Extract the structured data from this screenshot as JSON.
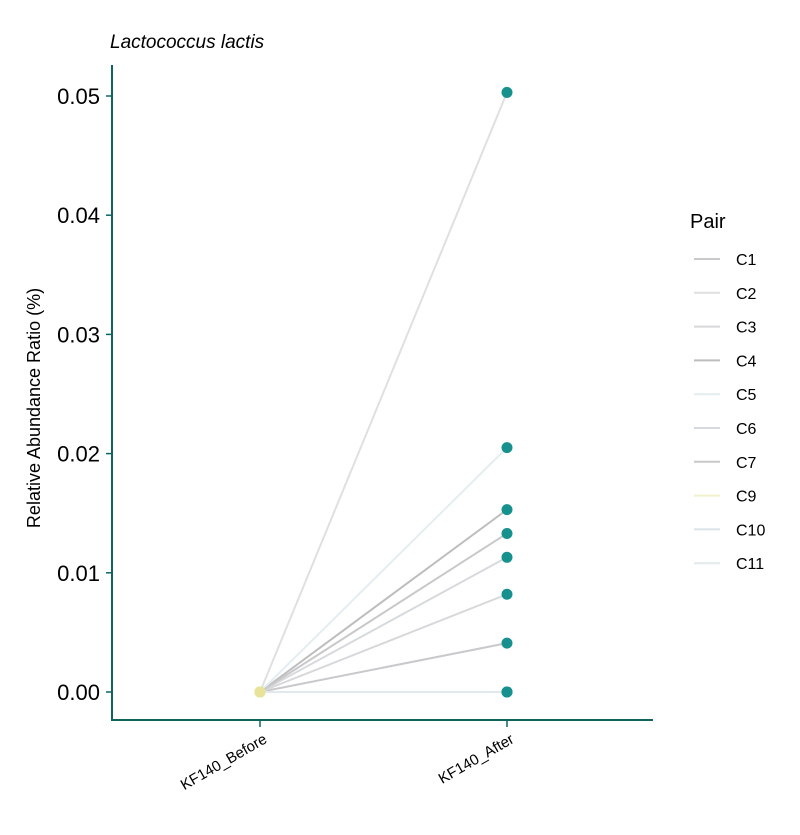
{
  "chart_data": {
    "type": "line",
    "title": "Lactococcus lactis",
    "xlabel": "",
    "ylabel": "Relative Abundance Ratio (%)",
    "categories": [
      "KF140_Before",
      "KF140_After"
    ],
    "ylim": [
      -0.0025,
      0.0528
    ],
    "yticks": [
      0,
      0.01,
      0.02,
      0.03,
      0.04,
      0.05
    ],
    "ytick_labels": [
      "0.00",
      "0.01",
      "0.02",
      "0.03",
      "0.04",
      "0.05"
    ],
    "legend_title": "Pair",
    "legend_position": "right",
    "point_color": "#17918e",
    "before_point_color": "#e8e29a",
    "axis_color": "#0f6460",
    "series": [
      {
        "name": "C1",
        "values": [
          0,
          0.0041
        ],
        "color": "#c9c9cd"
      },
      {
        "name": "C2",
        "values": [
          0,
          0.0503
        ],
        "color": "#e0e0e0"
      },
      {
        "name": "C3",
        "values": [
          0,
          0.0082
        ],
        "color": "#d6d8da"
      },
      {
        "name": "C4",
        "values": [
          0,
          0.0153
        ],
        "color": "#bdbdbd"
      },
      {
        "name": "C5",
        "values": [
          0,
          0.0205
        ],
        "color": "#e4eef0"
      },
      {
        "name": "C6",
        "values": [
          0,
          0.0113
        ],
        "color": "#d6dade"
      },
      {
        "name": "C7",
        "values": [
          0,
          0.0133
        ],
        "color": "#c8c8c8"
      },
      {
        "name": "C9",
        "values": [
          0,
          0
        ],
        "color": "#f2f2cc"
      },
      {
        "name": "C10",
        "values": [
          0,
          0
        ],
        "color": "#dbe4e8"
      },
      {
        "name": "C11",
        "values": [
          0,
          0
        ],
        "color": "#e2e9ec"
      }
    ]
  }
}
